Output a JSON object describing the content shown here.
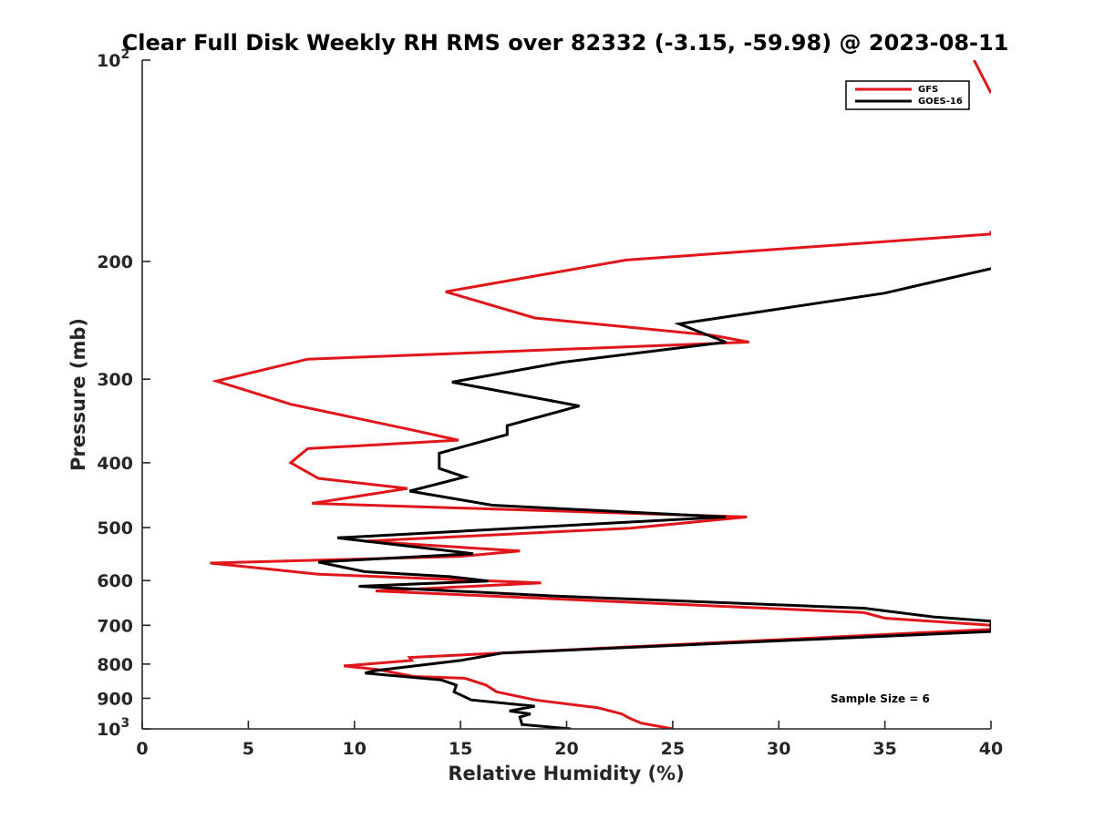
{
  "chart_data": {
    "type": "line",
    "title": "Clear Full Disk Weekly RH RMS over 82332 (-3.15, -59.98) @ 2023-08-11",
    "xlabel": "Relative Humidity (%)",
    "ylabel": "Pressure (mb)",
    "xlim": [
      0,
      40
    ],
    "ylim": [
      100,
      1000
    ],
    "yscale": "log",
    "y_reversed": true,
    "grid": false,
    "legend_position": "top-right",
    "x_ticks": [
      "0",
      "5",
      "10",
      "15",
      "20",
      "25",
      "30",
      "35",
      "40"
    ],
    "y_ticks": [
      {
        "value": 100,
        "label": "10",
        "sup": "2"
      },
      {
        "value": 200,
        "label": "200",
        "sup": ""
      },
      {
        "value": 300,
        "label": "300",
        "sup": ""
      },
      {
        "value": 400,
        "label": "400",
        "sup": ""
      },
      {
        "value": 500,
        "label": "500",
        "sup": ""
      },
      {
        "value": 600,
        "label": "600",
        "sup": ""
      },
      {
        "value": 700,
        "label": "700",
        "sup": ""
      },
      {
        "value": 800,
        "label": "800",
        "sup": ""
      },
      {
        "value": 900,
        "label": "900",
        "sup": ""
      },
      {
        "value": 1000,
        "label": "10",
        "sup": "3"
      }
    ],
    "series": [
      {
        "name": "GFS",
        "color": "#e0161a",
        "points": [
          [
            25.0,
            1000
          ],
          [
            23.5,
            980
          ],
          [
            23.0,
            965
          ],
          [
            22.6,
            950
          ],
          [
            21.5,
            930
          ],
          [
            18.5,
            905
          ],
          [
            16.7,
            880
          ],
          [
            16.2,
            860
          ],
          [
            15.2,
            840
          ],
          [
            12.8,
            835
          ],
          [
            11.1,
            815
          ],
          [
            9.5,
            805
          ],
          [
            12.7,
            790
          ],
          [
            12.6,
            782
          ],
          [
            40.0,
            710
          ],
          [
            40.0,
            700
          ],
          [
            35.0,
            683
          ],
          [
            34.0,
            670
          ],
          [
            11.0,
            622
          ],
          [
            18.8,
            605
          ],
          [
            8.3,
            587
          ],
          [
            3.2,
            565
          ],
          [
            15.0,
            552
          ],
          [
            17.8,
            542
          ],
          [
            10.5,
            524
          ],
          [
            23.0,
            501
          ],
          [
            28.5,
            482
          ],
          [
            8.0,
            460
          ],
          [
            12.5,
            437
          ],
          [
            8.3,
            422
          ],
          [
            7.0,
            400
          ],
          [
            7.8,
            381
          ],
          [
            14.9,
            370
          ],
          [
            12.5,
            356
          ],
          [
            7.0,
            327
          ],
          [
            3.5,
            302
          ],
          [
            7.8,
            280
          ],
          [
            28.6,
            264
          ],
          [
            26.9,
            258
          ],
          [
            18.5,
            243
          ],
          [
            14.3,
            222
          ],
          [
            22.8,
            199
          ],
          [
            40.0,
            182
          ],
          [
            40.0,
            180
          ],
          [
            40.0,
            183
          ]
        ]
      },
      {
        "name": "GOES-16",
        "color": "#000000",
        "points": [
          [
            20.2,
            1000
          ],
          [
            17.9,
            985
          ],
          [
            17.8,
            960
          ],
          [
            18.3,
            950
          ],
          [
            17.3,
            940
          ],
          [
            18.5,
            925
          ],
          [
            15.5,
            905
          ],
          [
            14.7,
            880
          ],
          [
            14.8,
            860
          ],
          [
            14.1,
            845
          ],
          [
            10.5,
            825
          ],
          [
            11.0,
            818
          ],
          [
            15.0,
            790
          ],
          [
            17.0,
            770
          ],
          [
            40.0,
            715
          ],
          [
            40.0,
            690
          ],
          [
            37.3,
            680
          ],
          [
            34.0,
            660
          ],
          [
            19.5,
            633
          ],
          [
            10.2,
            612
          ],
          [
            16.3,
            601
          ],
          [
            14.5,
            592
          ],
          [
            10.5,
            582
          ],
          [
            8.3,
            563
          ],
          [
            15.6,
            547
          ],
          [
            9.2,
            518
          ],
          [
            27.5,
            482
          ],
          [
            16.5,
            463
          ],
          [
            12.6,
            441
          ],
          [
            15.2,
            420
          ],
          [
            14.0,
            408
          ],
          [
            14.0,
            387
          ],
          [
            17.2,
            363
          ],
          [
            17.2,
            352
          ],
          [
            20.6,
            329
          ],
          [
            14.6,
            303
          ],
          [
            19.8,
            283
          ],
          [
            27.5,
            264
          ],
          [
            25.3,
            248
          ],
          [
            35.0,
            223
          ],
          [
            40.0,
            205
          ]
        ]
      },
      {
        "name": "",
        "color": "#e0161a",
        "points": [
          [
            39.2,
            100
          ],
          [
            40.0,
            112
          ]
        ]
      }
    ],
    "annotations": [
      {
        "text": "Sample Size = 6"
      }
    ]
  }
}
